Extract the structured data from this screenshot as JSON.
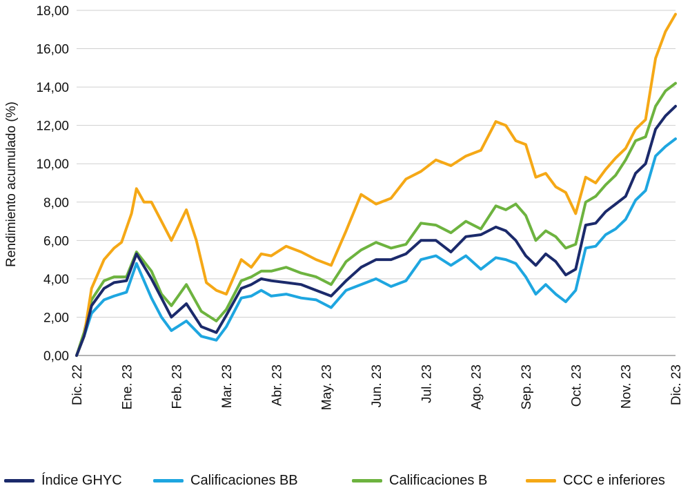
{
  "chart_data": {
    "type": "line",
    "ylabel": "Rendimiento acumulado (%)",
    "xlabel": "",
    "ylim": [
      0,
      18
    ],
    "yticks": [
      "0,00",
      "2,00",
      "4,00",
      "6,00",
      "8,00",
      "10,00",
      "12,00",
      "14,00",
      "16,00",
      "18,00"
    ],
    "ytick_values": [
      0,
      2,
      4,
      6,
      8,
      10,
      12,
      14,
      16,
      18
    ],
    "categories": [
      "Dic. 22",
      "Ene. 23",
      "Feb. 23",
      "Mar. 23",
      "Abr. 23",
      "May. 23",
      "Jun. 23",
      "Jul. 23",
      "Ago. 23",
      "Sep. 23",
      "Oct. 23",
      "Nov. 23",
      "Dic. 23"
    ],
    "grid": true,
    "legend_position": "bottom",
    "series": [
      {
        "name": "Índice GHYC",
        "color": "#1b2a6b",
        "x": [
          0,
          0.15,
          0.3,
          0.55,
          0.75,
          1.0,
          1.2,
          1.5,
          1.7,
          1.9,
          2.2,
          2.5,
          2.8,
          3.0,
          3.3,
          3.5,
          3.7,
          3.9,
          4.2,
          4.5,
          4.8,
          5.1,
          5.4,
          5.7,
          6.0,
          6.3,
          6.6,
          6.9,
          7.2,
          7.5,
          7.8,
          8.1,
          8.4,
          8.6,
          8.8,
          9.0,
          9.2,
          9.4,
          9.6,
          9.8,
          10.0,
          10.2,
          10.4,
          10.6,
          10.8,
          11.0,
          11.2,
          11.4,
          11.6,
          11.8,
          12.0
        ],
        "values": [
          0.0,
          1.0,
          2.6,
          3.5,
          3.8,
          3.9,
          5.3,
          4.0,
          3.0,
          2.0,
          2.7,
          1.5,
          1.2,
          2.1,
          3.5,
          3.7,
          4.0,
          3.9,
          3.8,
          3.7,
          3.4,
          3.1,
          3.9,
          4.6,
          5.0,
          5.0,
          5.3,
          6.0,
          6.0,
          5.4,
          6.2,
          6.3,
          6.7,
          6.5,
          6.0,
          5.2,
          4.7,
          5.3,
          4.9,
          4.2,
          4.5,
          6.8,
          6.9,
          7.5,
          7.9,
          8.3,
          9.5,
          10.0,
          11.8,
          12.5,
          13.0
        ]
      },
      {
        "name": "Calificaciones BB",
        "color": "#1ea6e0",
        "x": [
          0,
          0.15,
          0.3,
          0.55,
          0.75,
          1.0,
          1.2,
          1.5,
          1.7,
          1.9,
          2.2,
          2.5,
          2.8,
          3.0,
          3.3,
          3.5,
          3.7,
          3.9,
          4.2,
          4.5,
          4.8,
          5.1,
          5.4,
          5.7,
          6.0,
          6.3,
          6.6,
          6.9,
          7.2,
          7.5,
          7.8,
          8.1,
          8.4,
          8.6,
          8.8,
          9.0,
          9.2,
          9.4,
          9.6,
          9.8,
          10.0,
          10.2,
          10.4,
          10.6,
          10.8,
          11.0,
          11.2,
          11.4,
          11.6,
          11.8,
          12.0
        ],
        "values": [
          0.0,
          1.0,
          2.2,
          2.9,
          3.1,
          3.3,
          4.8,
          3.0,
          2.0,
          1.3,
          1.8,
          1.0,
          0.8,
          1.5,
          3.0,
          3.1,
          3.4,
          3.1,
          3.2,
          3.0,
          2.9,
          2.5,
          3.4,
          3.7,
          4.0,
          3.6,
          3.9,
          5.0,
          5.2,
          4.7,
          5.2,
          4.5,
          5.1,
          5.0,
          4.8,
          4.1,
          3.2,
          3.7,
          3.2,
          2.8,
          3.4,
          5.6,
          5.7,
          6.3,
          6.6,
          7.1,
          8.1,
          8.6,
          10.4,
          10.9,
          11.3
        ]
      },
      {
        "name": "Calificaciones B",
        "color": "#6db33f",
        "x": [
          0,
          0.15,
          0.3,
          0.55,
          0.75,
          1.0,
          1.2,
          1.5,
          1.7,
          1.9,
          2.2,
          2.5,
          2.8,
          3.0,
          3.3,
          3.5,
          3.7,
          3.9,
          4.2,
          4.5,
          4.8,
          5.1,
          5.4,
          5.7,
          6.0,
          6.3,
          6.6,
          6.9,
          7.2,
          7.5,
          7.8,
          8.1,
          8.4,
          8.6,
          8.8,
          9.0,
          9.2,
          9.4,
          9.6,
          9.8,
          10.0,
          10.2,
          10.4,
          10.6,
          10.8,
          11.0,
          11.2,
          11.4,
          11.6,
          11.8,
          12.0
        ],
        "values": [
          0.0,
          1.2,
          2.9,
          3.9,
          4.1,
          4.1,
          5.4,
          4.4,
          3.2,
          2.6,
          3.7,
          2.3,
          1.8,
          2.4,
          3.9,
          4.1,
          4.4,
          4.4,
          4.6,
          4.3,
          4.1,
          3.7,
          4.9,
          5.5,
          5.9,
          5.6,
          5.8,
          6.9,
          6.8,
          6.4,
          7.0,
          6.6,
          7.8,
          7.6,
          7.9,
          7.3,
          6.0,
          6.5,
          6.2,
          5.6,
          5.8,
          8.0,
          8.3,
          8.9,
          9.4,
          10.2,
          11.2,
          11.4,
          13.0,
          13.8,
          14.2
        ]
      },
      {
        "name": "CCC e inferiores",
        "color": "#f5a816",
        "x": [
          0,
          0.15,
          0.3,
          0.55,
          0.75,
          0.9,
          1.1,
          1.2,
          1.35,
          1.5,
          1.7,
          1.9,
          2.2,
          2.4,
          2.6,
          2.8,
          3.0,
          3.3,
          3.5,
          3.7,
          3.9,
          4.2,
          4.5,
          4.8,
          5.1,
          5.4,
          5.7,
          6.0,
          6.3,
          6.6,
          6.9,
          7.2,
          7.5,
          7.8,
          8.1,
          8.4,
          8.6,
          8.8,
          9.0,
          9.2,
          9.4,
          9.6,
          9.8,
          10.0,
          10.2,
          10.4,
          10.6,
          10.8,
          11.0,
          11.2,
          11.4,
          11.6,
          11.8,
          12.0
        ],
        "values": [
          0.0,
          1.0,
          3.5,
          5.0,
          5.6,
          5.9,
          7.4,
          8.7,
          8.0,
          8.0,
          7.0,
          6.0,
          7.6,
          6.0,
          3.8,
          3.4,
          3.2,
          5.0,
          4.6,
          5.3,
          5.2,
          5.7,
          5.4,
          5.0,
          4.7,
          6.5,
          8.4,
          7.9,
          8.2,
          9.2,
          9.6,
          10.2,
          9.9,
          10.4,
          10.7,
          12.2,
          12.0,
          11.2,
          11.0,
          9.3,
          9.5,
          8.8,
          8.5,
          7.4,
          9.3,
          9.0,
          9.7,
          10.3,
          10.8,
          11.8,
          12.3,
          15.5,
          16.9,
          17.8
        ]
      }
    ]
  }
}
